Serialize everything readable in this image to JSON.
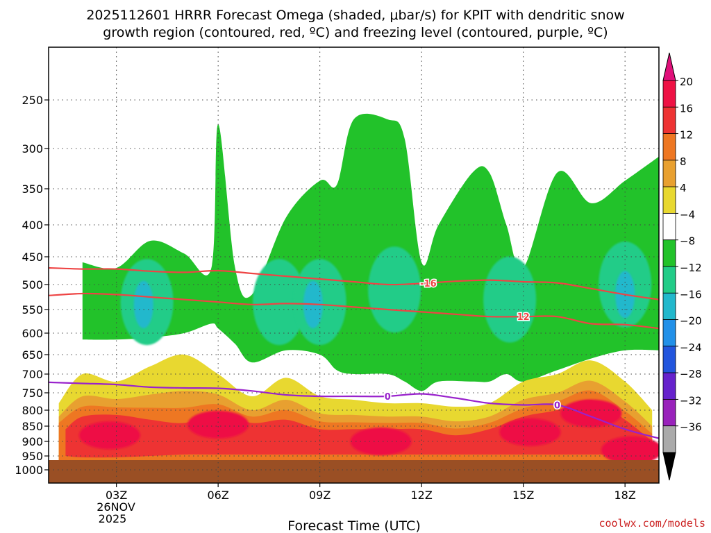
{
  "chart_data": {
    "type": "heatmap",
    "title_line1": "2025112601 HRRR Forecast Omega (shaded, μbar/s) for KPIT with dendritic snow",
    "title_line2": "growth region (contoured, red, ºC) and freezing level (contoured, purple, ºC)",
    "xlabel": "Forecast Time (UTC)",
    "credit": "coolwx.com/models",
    "x_ticks": [
      "03Z",
      "06Z",
      "09Z",
      "12Z",
      "15Z",
      "18Z"
    ],
    "x_tick_hours": [
      3,
      6,
      9,
      12,
      15,
      18
    ],
    "x_range_hours": [
      1,
      19
    ],
    "date_line1": "26NOV",
    "date_line2": "2025",
    "y_ticks": [
      "250",
      "300",
      "350",
      "400",
      "450",
      "500",
      "550",
      "600",
      "650",
      "700",
      "750",
      "800",
      "850",
      "900",
      "950",
      "1000"
    ],
    "y_tick_values": [
      250,
      300,
      350,
      400,
      450,
      500,
      550,
      600,
      650,
      700,
      750,
      800,
      850,
      900,
      950,
      1000
    ],
    "y_range_mb": [
      200,
      1025
    ],
    "ground_level_mb": 965,
    "colorbar": {
      "labels": [
        "20",
        "16",
        "12",
        "8",
        "4",
        "−4",
        "−8",
        "−12",
        "−16",
        "−20",
        "−24",
        "−28",
        "−32",
        "−36"
      ],
      "colors": [
        "#ee1144",
        "#ee3333",
        "#ee7722",
        "#e8a030",
        "#e8d830",
        "#ffffff",
        "#22c22a",
        "#22cc88",
        "#22b8cc",
        "#2290e8",
        "#2255dd",
        "#6622cc",
        "#9922bb",
        "#aaaaaa"
      ],
      "top_color": "#e0107a",
      "bottom_color": "#000000"
    },
    "omega_field": {
      "green_hours": [
        2.0,
        3.0,
        4.0,
        5.0,
        5.8,
        6.0,
        6.5,
        7.0,
        8.0,
        9.0,
        9.5,
        10.0,
        11.0,
        11.5,
        12.0,
        12.5,
        13.5,
        14.0,
        14.5,
        15.0,
        16.0,
        17.0,
        18.0,
        19.0
      ],
      "green_top_mb": [
        460,
        470,
        425,
        445,
        470,
        275,
        470,
        520,
        390,
        340,
        345,
        270,
        270,
        290,
        460,
        400,
        330,
        330,
        400,
        470,
        330,
        370,
        340,
        310
      ],
      "green_bottom_mb": [
        615,
        615,
        610,
        600,
        580,
        590,
        625,
        670,
        640,
        650,
        690,
        700,
        700,
        720,
        745,
        720,
        720,
        720,
        700,
        720,
        690,
        660,
        640,
        640
      ],
      "teal_pos": [
        [
          3.9,
          535
        ],
        [
          7.8,
          535
        ],
        [
          9.0,
          535
        ],
        [
          11.2,
          510
        ],
        [
          14.6,
          530
        ],
        [
          18.0,
          500
        ]
      ],
      "cyan_pos": [
        [
          3.8,
          540
        ],
        [
          8.8,
          540
        ],
        [
          18.0,
          520
        ]
      ],
      "yellow_hours": [
        1.3,
        2.0,
        3.0,
        4.0,
        5.0,
        6.0,
        7.0,
        8.0,
        9.0,
        10.0,
        11.0,
        12.0,
        13.0,
        14.0,
        15.0,
        16.0,
        17.0,
        18.0,
        18.8
      ],
      "yellow_top_mb": [
        780,
        700,
        720,
        680,
        650,
        700,
        760,
        710,
        760,
        770,
        780,
        780,
        790,
        780,
        720,
        700,
        665,
        720,
        800
      ],
      "yellow_bottom_mb": [
        965,
        965,
        965,
        965,
        965,
        965,
        965,
        965,
        965,
        965,
        965,
        965,
        965,
        965,
        965,
        965,
        965,
        965,
        965
      ],
      "red_hours": [
        1.5,
        2.0,
        3.0,
        4.0,
        5.0,
        6.0,
        7.0,
        8.0,
        9.0,
        10.0,
        11.0,
        12.0,
        13.0,
        14.0,
        15.0,
        16.0,
        17.0,
        18.0,
        18.8
      ],
      "red_top_mb": [
        860,
        820,
        815,
        830,
        840,
        810,
        840,
        830,
        860,
        860,
        860,
        860,
        880,
        860,
        820,
        800,
        770,
        830,
        900
      ],
      "red_bottom_mb": [
        950,
        955,
        955,
        950,
        945,
        945,
        945,
        945,
        945,
        945,
        945,
        945,
        945,
        945,
        945,
        945,
        945,
        945,
        950
      ],
      "magenta_pos": [
        [
          2.8,
          880
        ],
        [
          6.0,
          845
        ],
        [
          10.8,
          900
        ],
        [
          15.2,
          870
        ],
        [
          17.0,
          810
        ],
        [
          18.2,
          930
        ]
      ]
    },
    "contours": [
      {
        "name": "-16 ºC",
        "label": "-16",
        "color": "#ee4444",
        "hours": [
          1,
          2,
          3,
          4,
          5,
          6,
          7,
          8,
          9,
          10,
          11,
          12,
          13,
          14,
          15,
          16,
          17,
          18,
          19
        ],
        "pressure_mb": [
          470,
          472,
          472,
          476,
          478,
          475,
          480,
          485,
          490,
          495,
          500,
          498,
          494,
          492,
          495,
          497,
          508,
          520,
          530
        ],
        "label_hour": 12.2
      },
      {
        "name": "-12 ºC",
        "label": "12",
        "color": "#ee4444",
        "hours": [
          1,
          2,
          3,
          4,
          5,
          6,
          7,
          8,
          9,
          10,
          11,
          12,
          13,
          14,
          15,
          16,
          17,
          18,
          19
        ],
        "pressure_mb": [
          522,
          518,
          520,
          525,
          530,
          535,
          540,
          538,
          540,
          545,
          550,
          555,
          560,
          565,
          565,
          565,
          580,
          582,
          590
        ],
        "label_hour": 15.0
      },
      {
        "name": "0 ºC",
        "label": "0",
        "color": "#9922cc",
        "hours": [
          1,
          2,
          3,
          4,
          5,
          6,
          7,
          8,
          9,
          10,
          11,
          12,
          13,
          14,
          15,
          16,
          17,
          18,
          19
        ],
        "pressure_mb": [
          722,
          725,
          728,
          735,
          737,
          738,
          745,
          756,
          760,
          760,
          760,
          753,
          765,
          780,
          785,
          785,
          820,
          860,
          890
        ],
        "label_hour": 11.0,
        "label2_hour": 16.0
      }
    ]
  }
}
